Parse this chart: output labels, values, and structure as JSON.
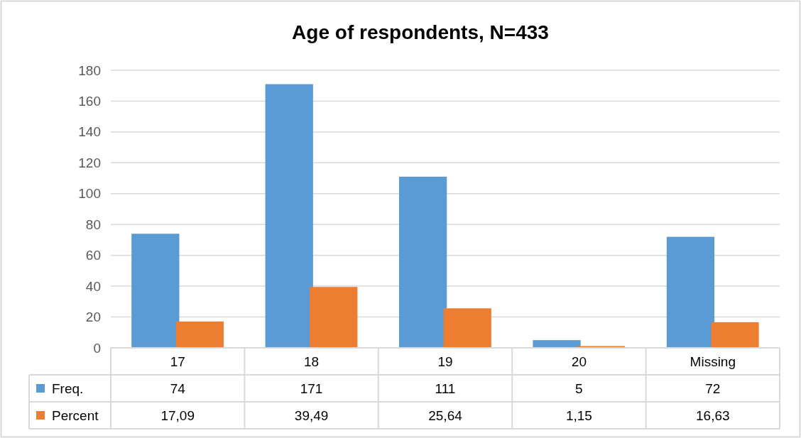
{
  "chart_data": {
    "type": "bar",
    "title": "Age of respondents, N=433",
    "categories": [
      "17",
      "18",
      "19",
      "20",
      "Missing"
    ],
    "series": [
      {
        "name": "Freq.",
        "color": "#5b9bd5",
        "values": [
          74,
          171,
          111,
          5,
          72
        ],
        "value_labels": [
          "74",
          "171",
          "111",
          "5",
          "72"
        ]
      },
      {
        "name": "Percent",
        "color": "#ed7d31",
        "values": [
          17.09,
          39.49,
          25.64,
          1.15,
          16.63
        ],
        "value_labels": [
          "17,09",
          "39,49",
          "25,64",
          "1,15",
          "16,63"
        ]
      }
    ],
    "ylim": [
      0,
      180
    ],
    "yticks": [
      0,
      20,
      40,
      60,
      80,
      100,
      120,
      140,
      160,
      180
    ],
    "grid": "y",
    "legend": "bottom"
  }
}
